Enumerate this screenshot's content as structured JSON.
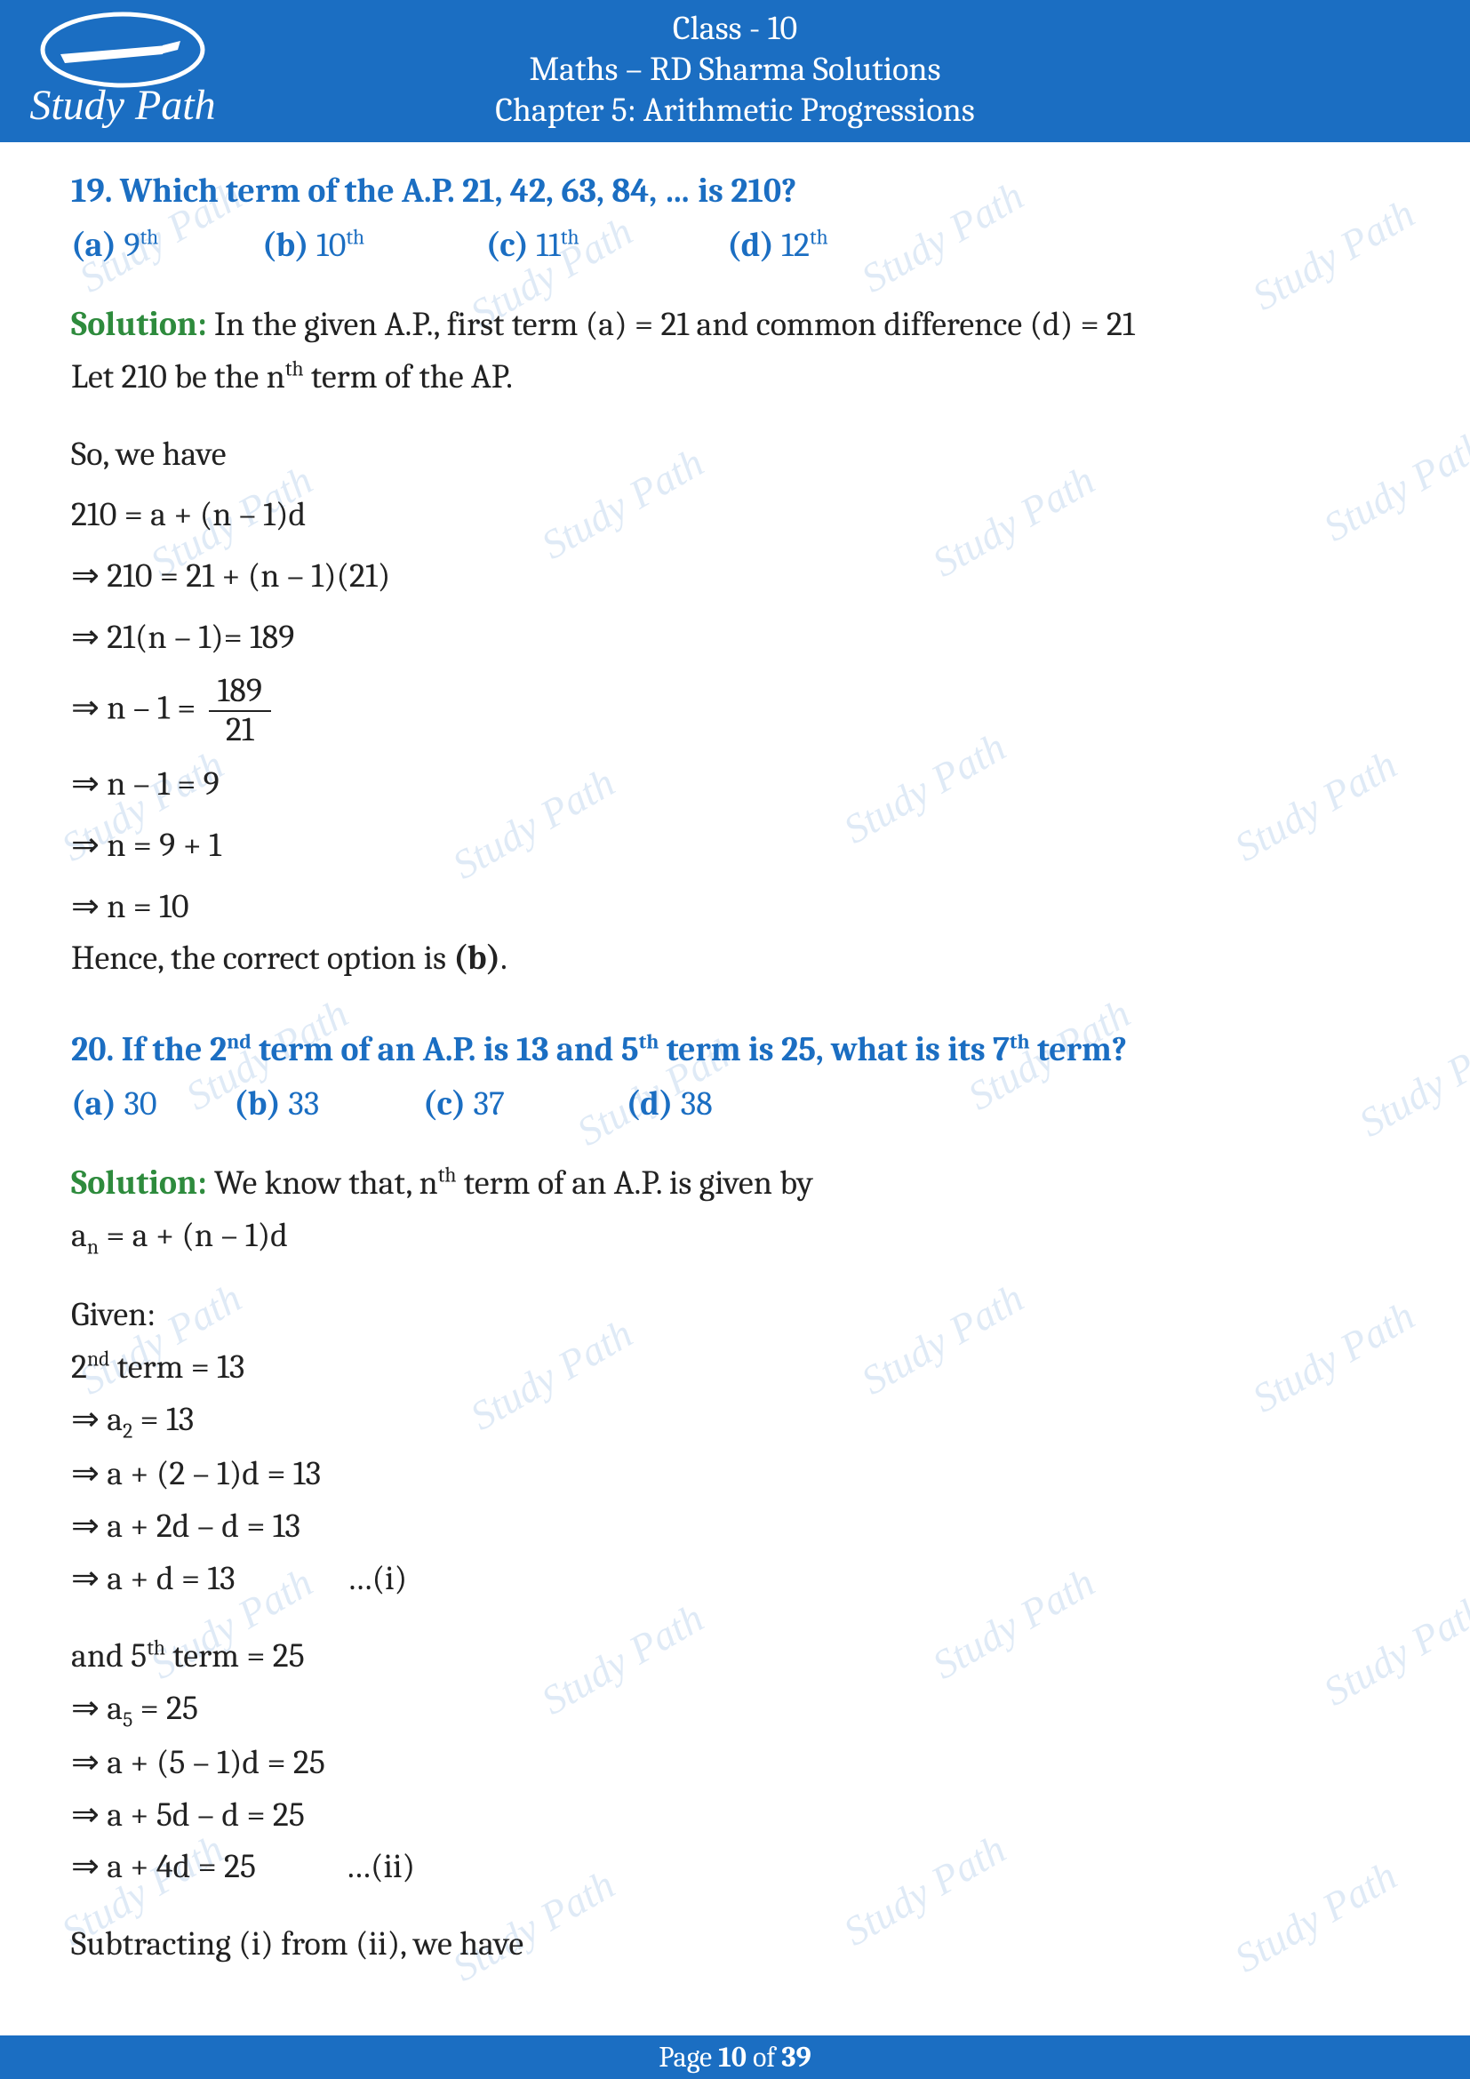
{
  "header": {
    "class_line": "Class - 10",
    "title_line": "Maths – RD Sharma Solutions",
    "chapter_line": "Chapter 5: Arithmetic Progressions",
    "logo_text": "Study Path"
  },
  "watermark_text": "Study Path",
  "q19": {
    "question": "19. Which term of the A.P. 21, 42, 63, 84, … is 210?",
    "opts": {
      "a_label": "(a)",
      "a_val": "9",
      "a_suf": "th",
      "b_label": "(b)",
      "b_val": "10",
      "b_suf": "th",
      "c_label": "(c)",
      "c_val": "11",
      "c_suf": "th",
      "d_label": "(d)",
      "d_val": "12",
      "d_suf": "th"
    },
    "sol_label": "Solution:",
    "line1a": " In the given A.P., first term (a) = 21 and common difference (d) = 21",
    "line1b_pre": "Let 210 be the n",
    "line1b_suf": "th",
    "line1b_post": " term of the AP.",
    "line2": "So, we have",
    "s1": "210 = a + (n – 1)d",
    "s2": "⇒ 210 = 21 + (n – 1)(21)",
    "s3": "⇒ 21(n – 1)= 189",
    "s4_pre": "⇒ n – 1 = ",
    "s4_num": "189",
    "s4_den": "21",
    "s5": "⇒ n – 1 = 9",
    "s6": "⇒ n = 9 + 1",
    "s7": "⇒ n = 10",
    "concl_pre": "Hence, the correct option is ",
    "concl_b": "(b)",
    "concl_post": "."
  },
  "q20": {
    "q_pre": "20. If the 2",
    "q_s1": "nd",
    "q_mid1": " term of an A.P. is 13 and 5",
    "q_s2": "th",
    "q_mid2": " term is 25, what is its 7",
    "q_s3": "th",
    "q_post": " term?",
    "opts": {
      "a_label": "(a)",
      "a_val": "30",
      "b_label": "(b)",
      "b_val": "33",
      "c_label": "(c)",
      "c_val": "37",
      "d_label": "(d)",
      "d_val": "38"
    },
    "sol_label": "Solution:",
    "line1_pre": "  We know that, n",
    "line1_suf": "th",
    "line1_post": " term of an A.P. is given by",
    "line2_pre": "a",
    "line2_sub": "n",
    "line2_post": " = a + (n – 1)d",
    "given": "Given:",
    "g1_pre": "2",
    "g1_suf": "nd",
    "g1_post": " term = 13",
    "g2_pre": "⇒ a",
    "g2_sub": "2",
    "g2_post": " = 13",
    "g3": "⇒ a + (2 – 1)d = 13",
    "g4": "⇒ a + 2d – d = 13",
    "g5": "⇒ a + d = 13               …(i)",
    "h1_pre": "and 5",
    "h1_suf": "th",
    "h1_post": " term = 25",
    "h2_pre": "⇒ a",
    "h2_sub": "5",
    "h2_post": " = 25",
    "h3": "⇒ a + (5 – 1)d = 25",
    "h4": "⇒ a + 5d – d = 25",
    "h5": "⇒ a + 4d = 25            …(ii)",
    "sub": "Subtracting (i) from (ii), we have"
  },
  "footer": {
    "pre": "Page ",
    "cur": "10",
    "mid": " of ",
    "tot": "39"
  },
  "colors": {
    "blue": "#1b6ec2",
    "green": "#2e8b3d",
    "wm": "#d8e6f5"
  }
}
